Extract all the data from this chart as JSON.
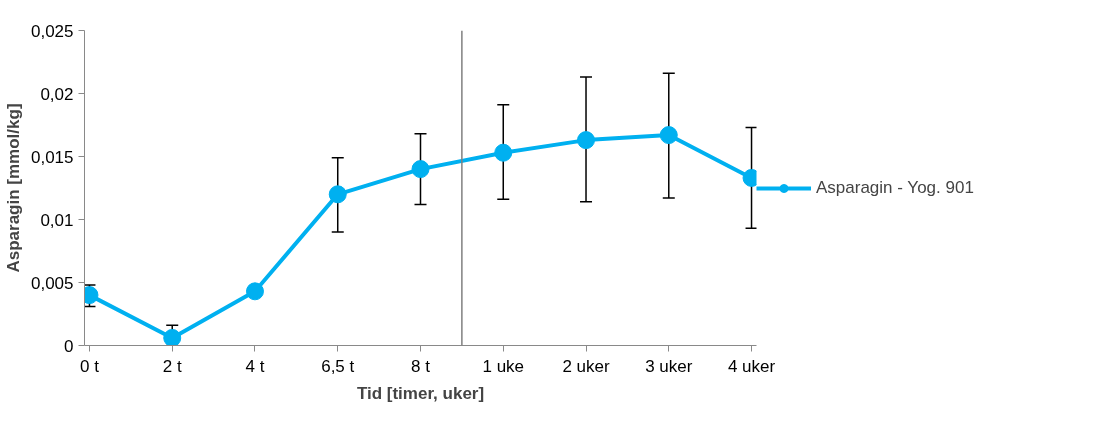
{
  "chart_data": {
    "type": "line",
    "xlabel": "Tid [timer, uker]",
    "ylabel": "Asparagin [mmol/kg]",
    "categories": [
      "0 t",
      "2 t",
      "4 t",
      "6,5 t",
      "8 t",
      "1 uke",
      "2 uker",
      "3 uker",
      "4 uker"
    ],
    "series": [
      {
        "name": "Asparagin - Yog. 901",
        "color": "#00b0f0",
        "values": [
          0.004,
          0.0006,
          0.0043,
          0.012,
          0.014,
          0.0153,
          0.0163,
          0.0167,
          0.0133
        ],
        "errors": [
          [
            0.0031,
            0.0048
          ],
          [
            0,
            0.0016
          ],
          null,
          [
            0.009,
            0.0149
          ],
          [
            0.0112,
            0.0168
          ],
          [
            0.0116,
            0.0191
          ],
          [
            0.0114,
            0.0213
          ],
          [
            0.0117,
            0.0216
          ],
          [
            0.0093,
            0.0173
          ]
        ]
      }
    ],
    "ylim": [
      0,
      0.025
    ],
    "yticks": [
      {
        "value": 0,
        "label": "0"
      },
      {
        "value": 0.005,
        "label": "0,005"
      },
      {
        "value": 0.01,
        "label": "0,01"
      },
      {
        "value": 0.015,
        "label": "0,015"
      },
      {
        "value": 0.02,
        "label": "0,02"
      },
      {
        "value": 0.025,
        "label": "0,025"
      }
    ],
    "marker": "circle",
    "line_style": "solid",
    "grid": false,
    "legend": "right"
  }
}
